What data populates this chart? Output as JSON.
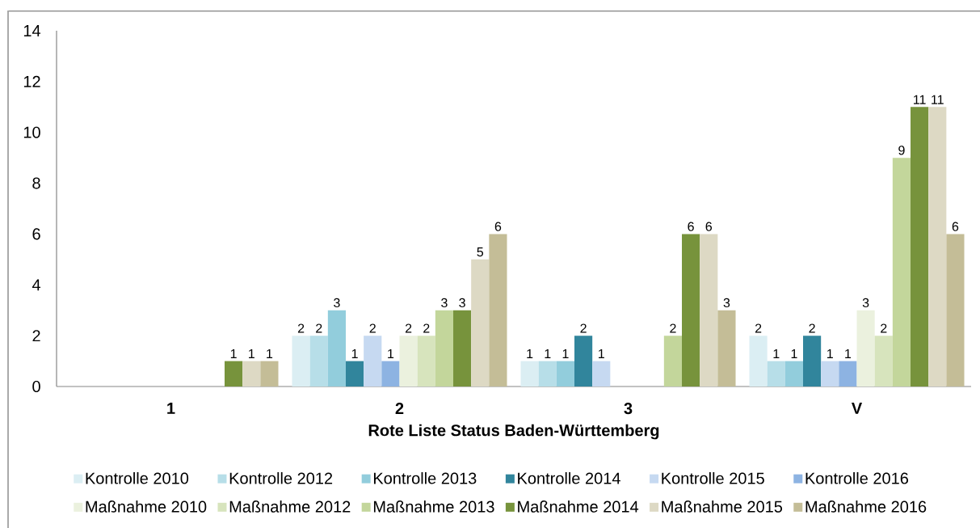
{
  "chart_data": {
    "type": "bar",
    "xlabel": "Rote Liste Status Baden-Württemberg",
    "categories": [
      "1",
      "2",
      "3",
      "V"
    ],
    "series": [
      {
        "name": "Kontrolle 2010",
        "color": "#dbeef3",
        "values": [
          null,
          2,
          1,
          2
        ]
      },
      {
        "name": "Kontrolle 2012",
        "color": "#b7dee8",
        "values": [
          null,
          2,
          1,
          1
        ]
      },
      {
        "name": "Kontrolle 2013",
        "color": "#92cddc",
        "values": [
          null,
          3,
          1,
          1
        ]
      },
      {
        "name": "Kontrolle 2014",
        "color": "#31859c",
        "values": [
          null,
          1,
          2,
          2
        ]
      },
      {
        "name": "Kontrolle 2015",
        "color": "#c6d9f1",
        "values": [
          null,
          2,
          1,
          1
        ]
      },
      {
        "name": "Kontrolle 2016",
        "color": "#8db3e2",
        "values": [
          null,
          1,
          null,
          1
        ]
      },
      {
        "name": "Maßnahme 2010",
        "color": "#ebf1de",
        "values": [
          null,
          2,
          null,
          3
        ]
      },
      {
        "name": "Maßnahme 2012",
        "color": "#d7e4bd",
        "values": [
          null,
          2,
          null,
          2
        ]
      },
      {
        "name": "Maßnahme 2013",
        "color": "#c3d69b",
        "values": [
          null,
          3,
          2,
          9
        ]
      },
      {
        "name": "Maßnahme 2014",
        "color": "#77933c",
        "values": [
          1,
          3,
          6,
          11
        ]
      },
      {
        "name": "Maßnahme 2015",
        "color": "#ddd9c4",
        "values": [
          1,
          5,
          6,
          11
        ]
      },
      {
        "name": "Maßnahme 2016",
        "color": "#c4bd97",
        "values": [
          1,
          6,
          3,
          6
        ]
      }
    ],
    "ylim": [
      0,
      14
    ],
    "yticks": [
      0,
      2,
      4,
      6,
      8,
      10,
      12,
      14
    ],
    "data_labels": true,
    "legend": "bottom"
  }
}
